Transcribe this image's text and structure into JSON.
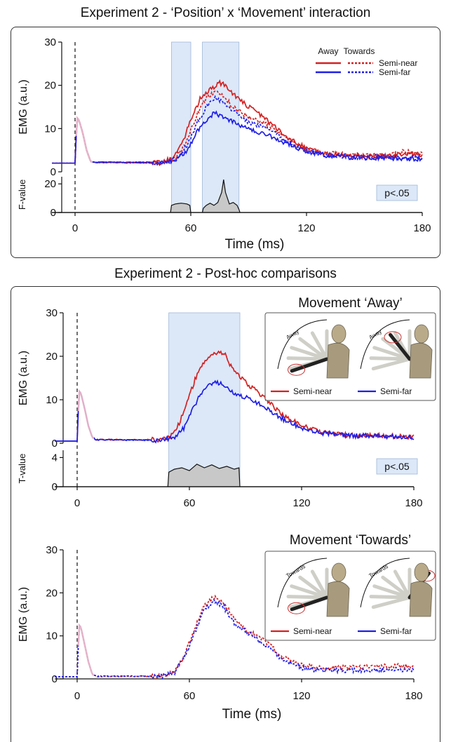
{
  "panel1_title": "Experiment 2 - ‘Position’ x ‘Movement’ interaction",
  "panel2_title": "Experiment 2 - Post-hoc comparisons",
  "colors": {
    "semi_near": "#d42121",
    "semi_far": "#1f1fe6",
    "window": "#dce8f8",
    "stat_fill": "#c8c8c8",
    "artifact": "#e9b7c9"
  },
  "chart_data": [
    {
      "type": "line",
      "id": "interaction",
      "xlabel": "Time (ms)",
      "ylabel": "EMG (a.u.)",
      "stat_label": "F-value",
      "sig_label": "p<.05",
      "xlim": [
        -12,
        180
      ],
      "ylim": [
        0,
        30
      ],
      "stat_ylim": [
        0,
        25
      ],
      "xticks": [
        0,
        60,
        120,
        180
      ],
      "yticks": [
        0,
        10,
        20,
        30
      ],
      "stat_yticks": [
        0,
        20
      ],
      "legend_headers": [
        "Away",
        "Towards"
      ],
      "legend_rows": [
        "Semi-near",
        "Semi-far"
      ],
      "sig_windows": [
        [
          50,
          60
        ],
        [
          66,
          85
        ]
      ],
      "series": [
        {
          "name": "Away Semi-near",
          "style": "solid",
          "color": "semi_near",
          "points": [
            [
              -12,
              2
            ],
            [
              0,
              2
            ],
            [
              1,
              12.5
            ],
            [
              2,
              12
            ],
            [
              4,
              9
            ],
            [
              6,
              5
            ],
            [
              8,
              2.5
            ],
            [
              10,
              2.2
            ],
            [
              45,
              2.2
            ],
            [
              50,
              3
            ],
            [
              55,
              6
            ],
            [
              60,
              12
            ],
            [
              65,
              17
            ],
            [
              70,
              19
            ],
            [
              75,
              20.5
            ],
            [
              78,
              20
            ],
            [
              82,
              18
            ],
            [
              90,
              15
            ],
            [
              100,
              12
            ],
            [
              110,
              8
            ],
            [
              120,
              5.5
            ],
            [
              130,
              4.2
            ],
            [
              145,
              3.6
            ],
            [
              160,
              3.5
            ],
            [
              170,
              4.2
            ],
            [
              180,
              4
            ]
          ]
        },
        {
          "name": "Away Semi-far",
          "style": "solid",
          "color": "semi_far",
          "points": [
            [
              -12,
              2
            ],
            [
              0,
              2
            ],
            [
              1,
              12.5
            ],
            [
              2,
              12
            ],
            [
              4,
              9
            ],
            [
              6,
              5
            ],
            [
              8,
              2.5
            ],
            [
              10,
              2.2
            ],
            [
              45,
              2.1
            ],
            [
              52,
              2.5
            ],
            [
              58,
              5
            ],
            [
              63,
              9
            ],
            [
              68,
              12
            ],
            [
              72,
              13.5
            ],
            [
              76,
              13
            ],
            [
              82,
              11.5
            ],
            [
              90,
              10
            ],
            [
              100,
              8.5
            ],
            [
              110,
              6.5
            ],
            [
              120,
              4.8
            ],
            [
              130,
              3.8
            ],
            [
              145,
              3.3
            ],
            [
              160,
              3.2
            ],
            [
              180,
              3
            ]
          ]
        },
        {
          "name": "Towards Semi-near",
          "style": "dashed",
          "color": "semi_near",
          "points": [
            [
              -12,
              2
            ],
            [
              0,
              2
            ],
            [
              1,
              12.5
            ],
            [
              2,
              12
            ],
            [
              4,
              9
            ],
            [
              6,
              5
            ],
            [
              8,
              2.5
            ],
            [
              10,
              2.2
            ],
            [
              45,
              2.2
            ],
            [
              52,
              3
            ],
            [
              58,
              7
            ],
            [
              63,
              13
            ],
            [
              68,
              17
            ],
            [
              72,
              18.5
            ],
            [
              76,
              18
            ],
            [
              82,
              15
            ],
            [
              90,
              12.5
            ],
            [
              100,
              11
            ],
            [
              110,
              7.5
            ],
            [
              120,
              5
            ],
            [
              130,
              4.3
            ],
            [
              145,
              3.8
            ],
            [
              160,
              3.9
            ],
            [
              170,
              4.6
            ],
            [
              180,
              4.3
            ]
          ]
        },
        {
          "name": "Towards Semi-far",
          "style": "dashed",
          "color": "semi_far",
          "points": [
            [
              -12,
              2
            ],
            [
              0,
              2
            ],
            [
              1,
              12.5
            ],
            [
              2,
              12
            ],
            [
              4,
              9
            ],
            [
              6,
              5
            ],
            [
              8,
              2.5
            ],
            [
              10,
              2.2
            ],
            [
              45,
              2.1
            ],
            [
              52,
              2.8
            ],
            [
              58,
              6
            ],
            [
              63,
              11
            ],
            [
              68,
              15
            ],
            [
              72,
              17
            ],
            [
              76,
              16.5
            ],
            [
              82,
              14
            ],
            [
              90,
              11.5
            ],
            [
              100,
              10
            ],
            [
              110,
              7
            ],
            [
              120,
              4.8
            ],
            [
              130,
              3.9
            ],
            [
              145,
              3.4
            ],
            [
              160,
              3.4
            ],
            [
              180,
              3.2
            ]
          ]
        }
      ],
      "stat": [
        [
          -12,
          0
        ],
        [
          49.5,
          0
        ],
        [
          50,
          5
        ],
        [
          52,
          6
        ],
        [
          55,
          6.5
        ],
        [
          58,
          6
        ],
        [
          59.5,
          5
        ],
        [
          60,
          0
        ],
        [
          66,
          0
        ],
        [
          66.5,
          3
        ],
        [
          68,
          5
        ],
        [
          70,
          6.5
        ],
        [
          72,
          5
        ],
        [
          74,
          7
        ],
        [
          76,
          14
        ],
        [
          77,
          23
        ],
        [
          78,
          14
        ],
        [
          80,
          6
        ],
        [
          82,
          7
        ],
        [
          84,
          5
        ],
        [
          85,
          2
        ],
        [
          85.5,
          0
        ],
        [
          180,
          0
        ]
      ]
    },
    {
      "type": "line",
      "id": "away",
      "title": "Movement ‘Away’",
      "ylabel": "EMG (a.u.)",
      "stat_label": "T-value",
      "sig_label": "p<.05",
      "xlim": [
        -12,
        180
      ],
      "ylim": [
        0,
        30
      ],
      "stat_ylim": [
        0,
        5
      ],
      "xticks": [
        0,
        60,
        120,
        180
      ],
      "yticks": [
        0,
        10,
        20,
        30
      ],
      "stat_yticks": [
        0,
        4
      ],
      "inset_labels": [
        "Away",
        "Away"
      ],
      "legend": [
        "Semi-near",
        "Semi-far"
      ],
      "sig_windows": [
        [
          49,
          87
        ]
      ],
      "series": [
        {
          "name": "Semi-near",
          "style": "solid",
          "color": "semi_near",
          "points": [
            [
              -12,
              0.5
            ],
            [
              0,
              0.5
            ],
            [
              1,
              12
            ],
            [
              2,
              11.5
            ],
            [
              4,
              8
            ],
            [
              6,
              4
            ],
            [
              8,
              1.5
            ],
            [
              10,
              0.8
            ],
            [
              45,
              0.8
            ],
            [
              50,
              1.5
            ],
            [
              55,
              5
            ],
            [
              60,
              11
            ],
            [
              65,
              17
            ],
            [
              70,
              20
            ],
            [
              75,
              21
            ],
            [
              79,
              20.5
            ],
            [
              83,
              17
            ],
            [
              90,
              14
            ],
            [
              100,
              10.5
            ],
            [
              110,
              6.5
            ],
            [
              120,
              4
            ],
            [
              130,
              2.6
            ],
            [
              145,
              1.8
            ],
            [
              160,
              1.8
            ],
            [
              180,
              1.4
            ]
          ]
        },
        {
          "name": "Semi-far",
          "style": "solid",
          "color": "semi_far",
          "points": [
            [
              -12,
              0.5
            ],
            [
              0,
              0.5
            ],
            [
              1,
              12
            ],
            [
              2,
              11.5
            ],
            [
              4,
              8
            ],
            [
              6,
              4
            ],
            [
              8,
              1.5
            ],
            [
              10,
              0.8
            ],
            [
              45,
              0.7
            ],
            [
              52,
              1.2
            ],
            [
              58,
              4
            ],
            [
              63,
              9
            ],
            [
              68,
              12.5
            ],
            [
              73,
              14
            ],
            [
              78,
              13.5
            ],
            [
              84,
              11.5
            ],
            [
              90,
              10.5
            ],
            [
              100,
              8.5
            ],
            [
              110,
              5.5
            ],
            [
              120,
              3.5
            ],
            [
              130,
              2.4
            ],
            [
              145,
              1.8
            ],
            [
              160,
              1.6
            ],
            [
              180,
              1.4
            ]
          ]
        }
      ],
      "stat": [
        [
          -12,
          0
        ],
        [
          48.5,
          0
        ],
        [
          49,
          2
        ],
        [
          52,
          2.4
        ],
        [
          56,
          2.6
        ],
        [
          60,
          2.2
        ],
        [
          64,
          3.1
        ],
        [
          68,
          2.6
        ],
        [
          72,
          3
        ],
        [
          76,
          2.5
        ],
        [
          80,
          2.8
        ],
        [
          84,
          2.4
        ],
        [
          86.5,
          2.6
        ],
        [
          87,
          0
        ],
        [
          180,
          0
        ]
      ]
    },
    {
      "type": "line",
      "id": "towards",
      "title": "Movement ‘Towards’",
      "xlabel": "Time (ms)",
      "ylabel": "EMG (a.u.)",
      "xlim": [
        -12,
        180
      ],
      "ylim": [
        0,
        30
      ],
      "xticks": [
        0,
        60,
        120,
        180
      ],
      "yticks": [
        0,
        10,
        20,
        30
      ],
      "inset_labels": [
        "Towards",
        "Towards"
      ],
      "legend": [
        "Semi-near",
        "Semi-far"
      ],
      "series": [
        {
          "name": "Semi-near",
          "style": "dashed",
          "color": "semi_near",
          "points": [
            [
              -12,
              0.5
            ],
            [
              0,
              0.5
            ],
            [
              1,
              12.5
            ],
            [
              2,
              12
            ],
            [
              4,
              8
            ],
            [
              6,
              4
            ],
            [
              8,
              1.2
            ],
            [
              10,
              0.6
            ],
            [
              45,
              0.6
            ],
            [
              52,
              1.5
            ],
            [
              58,
              6
            ],
            [
              63,
              12
            ],
            [
              68,
              17
            ],
            [
              73,
              19
            ],
            [
              78,
              18
            ],
            [
              84,
              14
            ],
            [
              90,
              11.5
            ],
            [
              100,
              9
            ],
            [
              110,
              5
            ],
            [
              120,
              3.2
            ],
            [
              130,
              2.5
            ],
            [
              145,
              2.6
            ],
            [
              160,
              2.8
            ],
            [
              170,
              3
            ],
            [
              180,
              3
            ]
          ]
        },
        {
          "name": "Semi-far",
          "style": "dashed",
          "color": "semi_far",
          "points": [
            [
              -12,
              0.5
            ],
            [
              0,
              0.5
            ],
            [
              1,
              12.5
            ],
            [
              2,
              12
            ],
            [
              4,
              8
            ],
            [
              6,
              4
            ],
            [
              8,
              1.2
            ],
            [
              10,
              0.6
            ],
            [
              45,
              0.6
            ],
            [
              52,
              1.4
            ],
            [
              58,
              5.5
            ],
            [
              63,
              11
            ],
            [
              68,
              16
            ],
            [
              73,
              18
            ],
            [
              78,
              17
            ],
            [
              84,
              13
            ],
            [
              90,
              11
            ],
            [
              100,
              8
            ],
            [
              110,
              4.5
            ],
            [
              120,
              2.6
            ],
            [
              130,
              2
            ],
            [
              145,
              2
            ],
            [
              160,
              2
            ],
            [
              170,
              2.2
            ],
            [
              180,
              2
            ]
          ]
        }
      ]
    }
  ]
}
